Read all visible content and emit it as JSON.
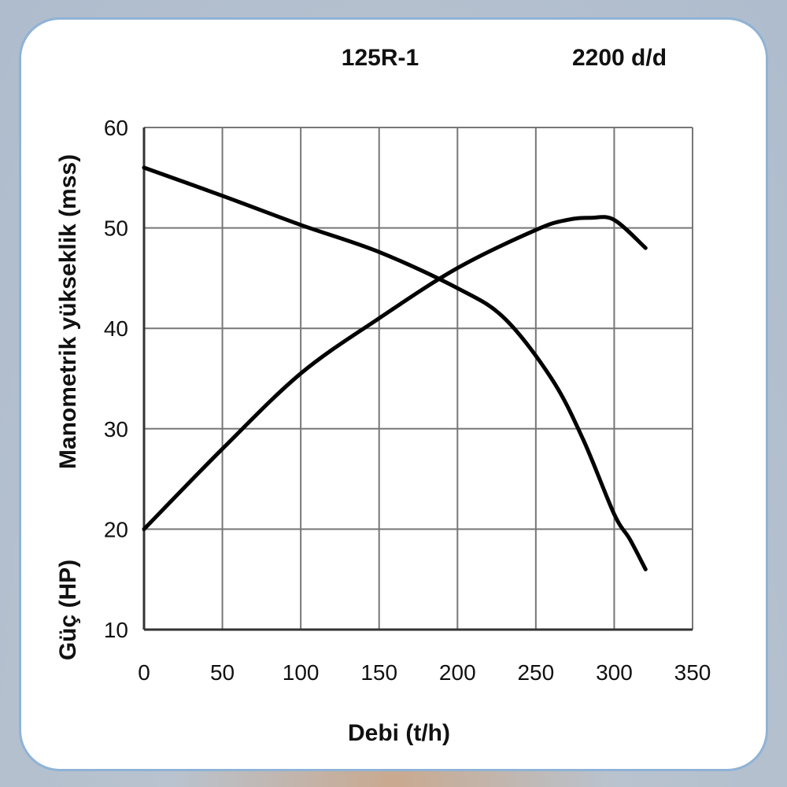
{
  "chart_data": {
    "type": "line",
    "title_model": "125R-1",
    "title_speed": "2200 d/d",
    "xlabel": "Debi (t/h)",
    "ylabel_head": "Manometrik yükseklik (mss)",
    "ylabel_power": "Güç (HP)",
    "xlim": [
      0,
      350
    ],
    "ylim": [
      10,
      60
    ],
    "xticks": [
      "0",
      "50",
      "100",
      "150",
      "200",
      "250",
      "300",
      "350"
    ],
    "yticks": [
      "10",
      "20",
      "30",
      "40",
      "50",
      "60"
    ],
    "grid": true,
    "series": [
      {
        "x": [
          0,
          50,
          100,
          150,
          200,
          230,
          260,
          280,
          300,
          310,
          320
        ],
        "values": [
          56,
          53.2,
          50.3,
          47.6,
          44,
          41,
          35,
          29,
          21.5,
          19,
          16
        ]
      },
      {
        "x": [
          0,
          50,
          100,
          150,
          200,
          250,
          270,
          285,
          300,
          320
        ],
        "values": [
          20,
          28,
          35.5,
          41,
          46,
          49.8,
          50.8,
          51,
          50.8,
          48
        ]
      }
    ]
  }
}
